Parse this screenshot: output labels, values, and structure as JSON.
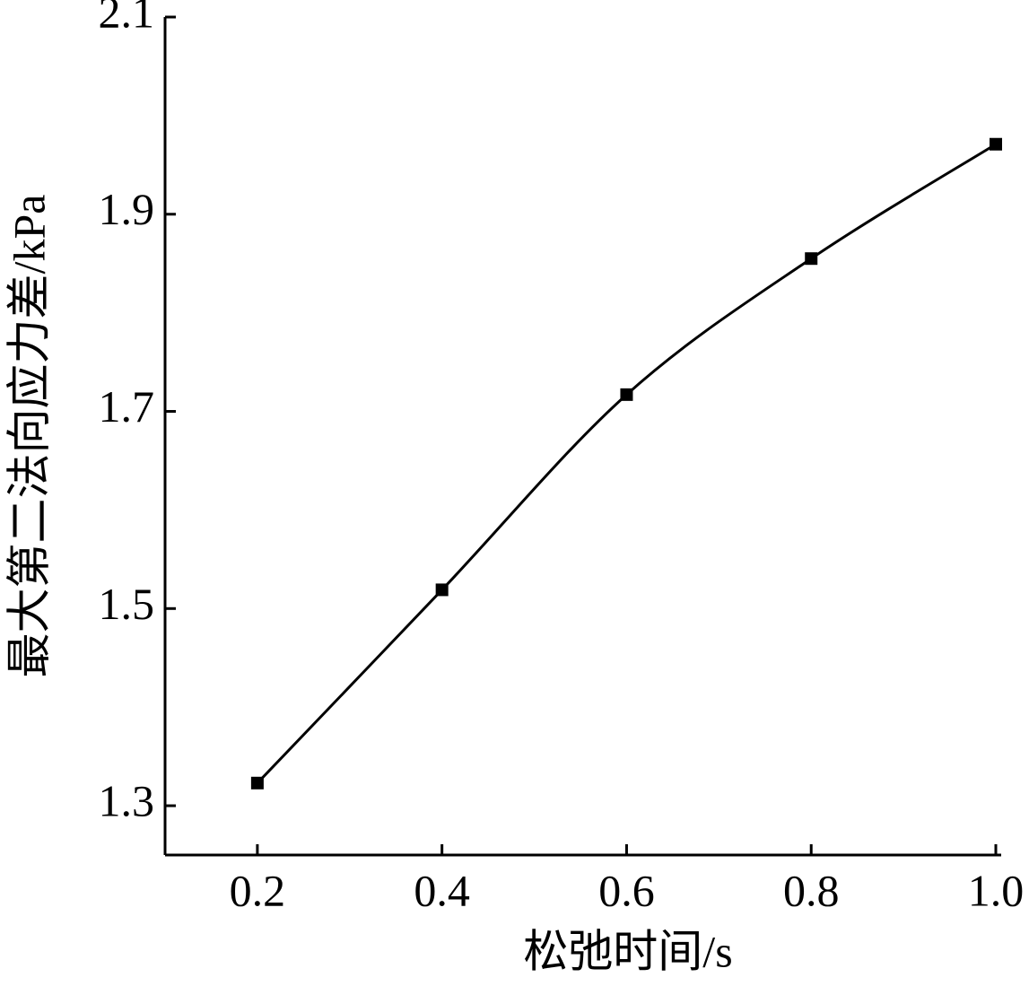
{
  "chart_data": {
    "type": "line",
    "x_label": "松弛时间/s",
    "y_label": "最大第二法向应力差/kPa",
    "x": [
      0.2,
      0.4,
      0.6,
      0.8,
      1.0
    ],
    "series": [
      {
        "color": "#000000",
        "values": [
          1.323,
          1.519,
          1.717,
          1.855,
          1.971
        ]
      }
    ],
    "xlim": [
      0.1,
      1.0
    ],
    "xticks": [
      0.2,
      0.4,
      0.6,
      0.8,
      {
        "value": 1.0,
        "label": "1.0"
      }
    ],
    "ylim": [
      1.25,
      2.1
    ],
    "yticks": [
      1.3,
      1.5,
      1.7,
      1.9,
      2.1
    ],
    "smooth": true,
    "marker": "square"
  }
}
